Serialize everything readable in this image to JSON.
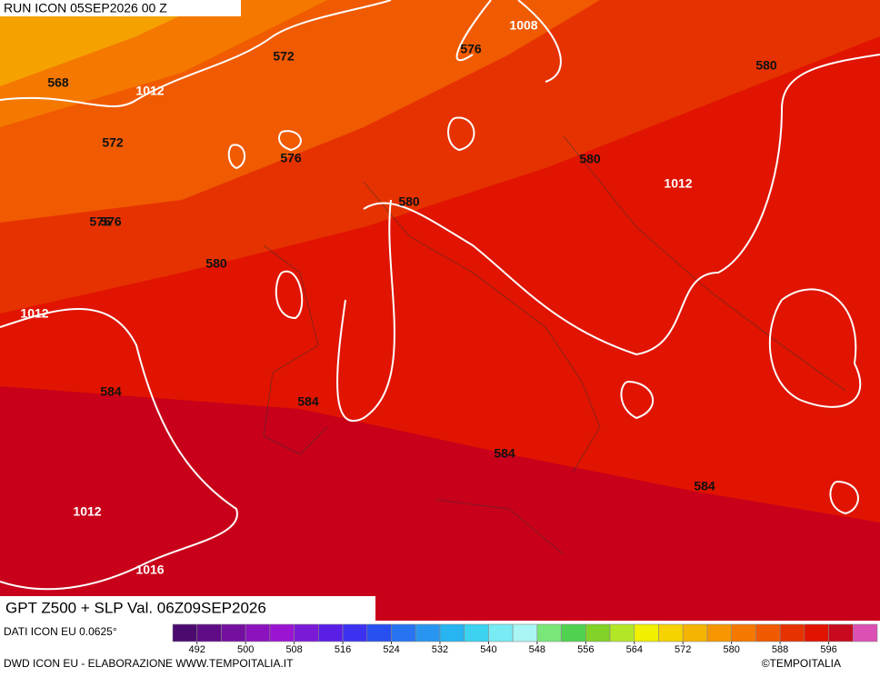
{
  "header": {
    "run": "RUN ICON 05SEP2026 00 Z"
  },
  "map": {
    "contour_labels": [
      "568",
      "572",
      "572",
      "576",
      "576",
      "576",
      "576",
      "580",
      "580",
      "580",
      "580",
      "584",
      "584",
      "584",
      "584",
      "1008",
      "1012",
      "1012",
      "1012",
      "1012",
      "1016"
    ]
  },
  "footer": {
    "title": "GPT Z500 + SLP Val. 06Z09SEP2026",
    "source": "DATI ICON EU 0.0625°",
    "credit": "DWD ICON EU - ELABORAZIONE WWW.TEMPOITALIA.IT",
    "copyright": "©TEMPOITALIA"
  },
  "colorbar": {
    "range": [
      488,
      604
    ],
    "ticks": [
      492,
      500,
      508,
      516,
      524,
      532,
      540,
      548,
      556,
      564,
      572,
      580,
      588,
      596
    ],
    "colors": [
      "#4b0a6e",
      "#5f0c87",
      "#7410a0",
      "#8c12be",
      "#9a14d2",
      "#7a1ad6",
      "#5a1ee6",
      "#3c32f0",
      "#2850f0",
      "#2873f0",
      "#2896f0",
      "#28b4f0",
      "#3cd2f0",
      "#78ebf5",
      "#aaf5f5",
      "#78e678",
      "#50d250",
      "#82d228",
      "#b4e628",
      "#f0f000",
      "#f5d200",
      "#f5b400",
      "#f59600",
      "#f57800",
      "#f05a00",
      "#e63200",
      "#e01400",
      "#c80a1e",
      "#dc50b4"
    ]
  }
}
